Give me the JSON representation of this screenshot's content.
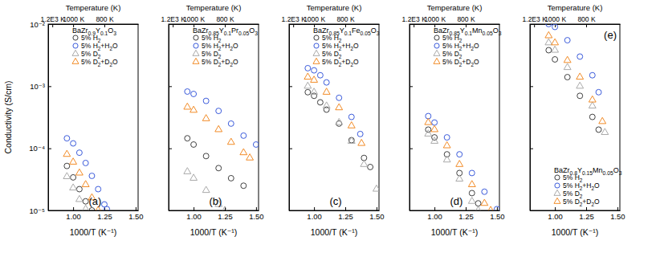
{
  "chart_data": [
    {
      "type": "scatter",
      "title": "BaZr0.9Y0.1O3",
      "annotation": "(a)",
      "xlabel": "1000/T (K⁻¹)",
      "ylabel": "Conductivity (S/cm)",
      "x2label": "Temperature (K)",
      "log": "y",
      "legend": "upper right",
      "xlim": [
        0.8,
        1.52
      ],
      "ylim": [
        1e-05,
        0.01
      ],
      "xticks": [
        {
          "value": 1.0,
          "label": "1.00"
        },
        {
          "value": 1.25,
          "label": "1.25"
        },
        {
          "value": 1.5,
          "label": "1.50"
        }
      ],
      "x2ticks": [
        {
          "value": 0.8333,
          "label": "1.2E3 K"
        },
        {
          "value": 1.0,
          "label": "1000 K"
        },
        {
          "value": 1.25,
          "label": "800 K"
        }
      ],
      "yticks": [
        {
          "value": 1e-05,
          "label": "10⁻⁵"
        },
        {
          "value": 0.0001,
          "label": "10⁻⁴"
        },
        {
          "value": 0.001,
          "label": "10⁻³"
        },
        {
          "value": 0.01,
          "label": "10⁻²"
        }
      ],
      "series": [
        {
          "name": "5% H2",
          "color": "#404040",
          "marker": "circle",
          "x": [
            0.95,
            1.0,
            1.05,
            1.1,
            1.15
          ],
          "values": [
            5.2e-05,
            3.4e-05,
            2.2e-05,
            1.4e-05,
            1e-05
          ]
        },
        {
          "name": "5% H2+H2O",
          "color": "#3b5bdb",
          "marker": "circle",
          "x": [
            0.95,
            1.0,
            1.05,
            1.1,
            1.15,
            1.2,
            1.25,
            1.27
          ],
          "values": [
            0.000145,
            0.00012,
            8.5e-05,
            5.8e-05,
            3.6e-05,
            2.2e-05,
            1.25e-05,
            1.05e-05
          ]
        },
        {
          "name": "5% D2",
          "color": "#aaaaaa",
          "marker": "triangle",
          "x": [
            0.95,
            1.0,
            1.05,
            1.1
          ],
          "values": [
            3.5e-05,
            2.3e-05,
            1.5e-05,
            1.05e-05
          ]
        },
        {
          "name": "5% D2+D2O",
          "color": "#f28c28",
          "marker": "triangle",
          "x": [
            0.95,
            1.0,
            1.05,
            1.1,
            1.15,
            1.2
          ],
          "values": [
            8e-05,
            6e-05,
            4e-05,
            2.6e-05,
            1.6e-05,
            1e-05
          ]
        }
      ]
    },
    {
      "type": "scatter",
      "title": "BaZr0.85Y0.1Pr0.05O3",
      "annotation": "(b)",
      "xlabel": "1000/T (K⁻¹)",
      "x2label": "Temperature (K)",
      "log": "y",
      "legend": "upper right",
      "tick_labels": "x",
      "xlim": [
        0.8,
        1.52
      ],
      "ylim": [
        1e-05,
        0.01
      ],
      "xticks": [
        {
          "value": 1.0,
          "label": "1.00"
        },
        {
          "value": 1.25,
          "label": "1.25"
        },
        {
          "value": 1.5,
          "label": "1.50"
        }
      ],
      "x2ticks": [
        {
          "value": 0.8333,
          "label": "1.2E3 K"
        },
        {
          "value": 1.0,
          "label": "1000 K"
        },
        {
          "value": 1.25,
          "label": "800 K"
        }
      ],
      "yticks": [
        1e-05,
        0.0001,
        0.001,
        0.01
      ],
      "series": [
        {
          "name": "5% H2",
          "color": "#404040",
          "marker": "circle",
          "x": [
            0.95,
            1.0,
            1.1,
            1.2,
            1.3,
            1.4
          ],
          "values": [
            0.000145,
            0.000115,
            7.5e-05,
            4.8e-05,
            3.3e-05,
            2.5e-05
          ]
        },
        {
          "name": "5% H2+H2O",
          "color": "#3b5bdb",
          "marker": "circle",
          "x": [
            0.95,
            1.0,
            1.1,
            1.2,
            1.3,
            1.4,
            1.5
          ],
          "values": [
            0.00082,
            0.00075,
            0.00058,
            0.0004,
            0.00025,
            0.00016,
            0.000115
          ]
        },
        {
          "name": "5% D2",
          "color": "#aaaaaa",
          "marker": "triangle",
          "x": [
            0.95,
            1.0,
            1.1,
            1.2,
            1.25
          ],
          "values": [
            4.2e-05,
            3.3e-05,
            2.1e-05,
            1.25e-05,
            1e-05
          ]
        },
        {
          "name": "5% D2+D2O",
          "color": "#f28c28",
          "marker": "triangle",
          "x": [
            0.95,
            1.0,
            1.1,
            1.2,
            1.3,
            1.4,
            1.45
          ],
          "values": [
            0.00046,
            0.00041,
            0.0003,
            0.0002,
            0.000125,
            8.5e-05,
            7e-05
          ]
        }
      ]
    },
    {
      "type": "scatter",
      "title": "BaZr0.85Y0.1Fe0.05O3",
      "annotation": "(c)",
      "xlabel": "1000/T (K⁻¹)",
      "x2label": "Temperature (K)",
      "log": "y",
      "legend": "upper right",
      "tick_labels": "x",
      "xlim": [
        0.8,
        1.52
      ],
      "ylim": [
        1e-05,
        0.01
      ],
      "xticks": [
        {
          "value": 1.0,
          "label": "1.00"
        },
        {
          "value": 1.25,
          "label": "1.25"
        },
        {
          "value": 1.5,
          "label": "1.50"
        }
      ],
      "x2ticks": [
        {
          "value": 0.8333,
          "label": "1.2E3 K"
        },
        {
          "value": 1.0,
          "label": "1000 K"
        },
        {
          "value": 1.25,
          "label": "800 K"
        }
      ],
      "yticks": [
        1e-05,
        0.0001,
        0.001,
        0.01
      ],
      "series": [
        {
          "name": "5% H2",
          "color": "#404040",
          "marker": "circle",
          "x": [
            0.95,
            1.0,
            1.05,
            1.1,
            1.2,
            1.3,
            1.4,
            1.45
          ],
          "values": [
            0.0008,
            0.0007,
            0.00055,
            0.00042,
            0.00025,
            0.000135,
            7e-05,
            5e-05
          ]
        },
        {
          "name": "5% H2+H2O",
          "color": "#3b5bdb",
          "marker": "circle",
          "x": [
            0.95,
            1.0,
            1.05,
            1.1,
            1.2,
            1.3,
            1.37
          ],
          "values": [
            0.00195,
            0.0018,
            0.0015,
            0.00115,
            0.00065,
            0.00032,
            0.00017
          ]
        },
        {
          "name": "5% D2",
          "color": "#aaaaaa",
          "marker": "triangle",
          "x": [
            0.95,
            1.0,
            1.1,
            1.2,
            1.3,
            1.4,
            1.5
          ],
          "values": [
            0.001,
            0.0008,
            0.00048,
            0.00026,
            0.00013,
            5.5e-05,
            2.2e-05
          ]
        },
        {
          "name": "5% D2+D2O",
          "color": "#f28c28",
          "marker": "triangle",
          "x": [
            0.95,
            1.0,
            1.1,
            1.2,
            1.3,
            1.38
          ],
          "values": [
            0.0014,
            0.00125,
            0.0008,
            0.00045,
            0.00023,
            0.00012
          ]
        }
      ]
    },
    {
      "type": "scatter",
      "title": "BaZr0.85Y0.1Mn0.05O3",
      "annotation": "(d)",
      "xlabel": "1000/T (K⁻¹)",
      "x2label": "Temperature (K)",
      "log": "y",
      "legend": "upper right",
      "tick_labels": "x",
      "xlim": [
        0.8,
        1.52
      ],
      "ylim": [
        1e-05,
        0.01
      ],
      "xticks": [
        {
          "value": 1.0,
          "label": "1.00"
        },
        {
          "value": 1.25,
          "label": "1.25"
        },
        {
          "value": 1.5,
          "label": "1.50"
        }
      ],
      "x2ticks": [
        {
          "value": 0.8333,
          "label": "1.2E3 K"
        },
        {
          "value": 1.0,
          "label": "1000 K"
        },
        {
          "value": 1.25,
          "label": "800 K"
        }
      ],
      "yticks": [
        1e-05,
        0.0001,
        0.001,
        0.01
      ],
      "series": [
        {
          "name": "5% H2",
          "color": "#404040",
          "marker": "circle",
          "x": [
            0.95,
            1.0,
            1.1,
            1.2,
            1.3,
            1.35
          ],
          "values": [
            0.0002,
            0.00015,
            8e-05,
            4e-05,
            1.9e-05,
            1.3e-05
          ]
        },
        {
          "name": "5% H2+H2O",
          "color": "#3b5bdb",
          "marker": "circle",
          "x": [
            0.95,
            1.0,
            1.1,
            1.2,
            1.3,
            1.4,
            1.5
          ],
          "values": [
            0.00033,
            0.00026,
            0.00015,
            8e-05,
            4e-05,
            2e-05,
            1.05e-05
          ]
        },
        {
          "name": "5% D2",
          "color": "#aaaaaa",
          "marker": "triangle",
          "x": [
            0.95,
            1.0,
            1.1,
            1.2,
            1.3,
            1.35
          ],
          "values": [
            0.00017,
            0.00013,
            6.5e-05,
            3.2e-05,
            1.4e-05,
            1e-05
          ]
        },
        {
          "name": "5% D2+D2O",
          "color": "#f28c28",
          "marker": "triangle",
          "x": [
            0.95,
            1.0,
            1.1,
            1.2,
            1.3,
            1.4,
            1.45
          ],
          "values": [
            0.00026,
            0.0002,
            0.00011,
            5.5e-05,
            2.6e-05,
            1.3e-05,
            1e-05
          ]
        }
      ]
    },
    {
      "type": "scatter",
      "title": "BaZr0.8Y0.15Mn0.05O3",
      "annotation": "(e)",
      "xlabel": "1000/T (K⁻¹)",
      "x2label": "Temperature (K)",
      "log": "y",
      "legend": "lower right",
      "tick_labels": "x",
      "xlim": [
        0.8,
        1.52
      ],
      "ylim": [
        1e-05,
        0.01
      ],
      "xticks": [
        {
          "value": 1.0,
          "label": "1.00"
        },
        {
          "value": 1.25,
          "label": "1.25"
        },
        {
          "value": 1.5,
          "label": "1.50"
        }
      ],
      "x2ticks": [
        {
          "value": 0.8333,
          "label": "1.2E3 K"
        },
        {
          "value": 1.0,
          "label": "1000 K"
        },
        {
          "value": 1.25,
          "label": "800 K"
        }
      ],
      "yticks": [
        1e-05,
        0.0001,
        0.001,
        0.01
      ],
      "series": [
        {
          "name": "5% H2",
          "color": "#404040",
          "marker": "circle",
          "x": [
            0.95,
            1.0,
            1.1,
            1.2,
            1.3,
            1.35
          ],
          "values": [
            0.0038,
            0.0027,
            0.0014,
            0.0007,
            0.00032,
            0.0002
          ]
        },
        {
          "name": "5% H2+H2O",
          "color": "#3b5bdb",
          "marker": "circle",
          "x": [
            0.95,
            1.0,
            1.1,
            1.2,
            1.3,
            1.35
          ],
          "values": [
            0.01,
            0.009,
            0.0055,
            0.003,
            0.0015,
            0.0008
          ]
        },
        {
          "name": "5% D2",
          "color": "#aaaaaa",
          "marker": "triangle",
          "x": [
            0.95,
            1.0,
            1.1,
            1.2,
            1.3,
            1.4
          ],
          "values": [
            0.005,
            0.0038,
            0.002,
            0.001,
            0.00048,
            0.00018
          ]
        },
        {
          "name": "5% D2+D2O",
          "color": "#f28c28",
          "marker": "triangle",
          "x": [
            0.95,
            1.0,
            1.1,
            1.2,
            1.3,
            1.38
          ],
          "values": [
            0.0065,
            0.005,
            0.0026,
            0.0014,
            0.0006,
            0.00027
          ]
        }
      ]
    }
  ]
}
